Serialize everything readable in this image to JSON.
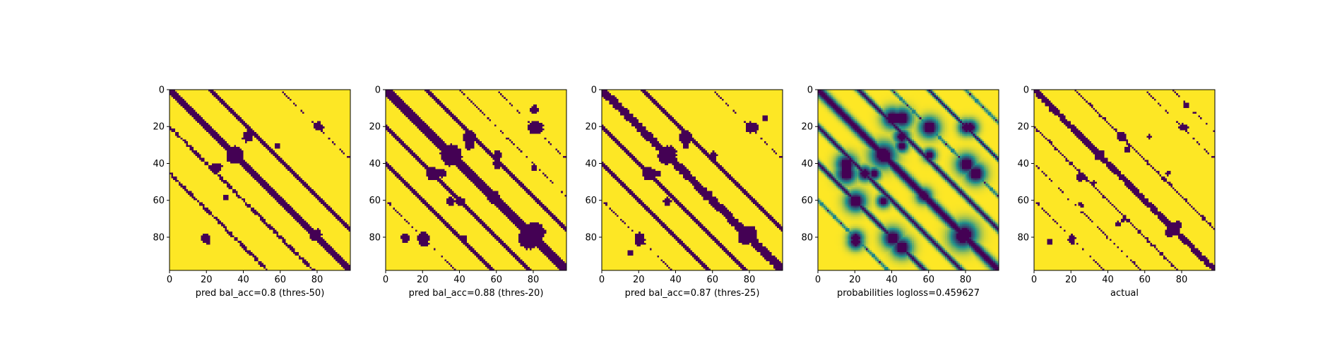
{
  "colors": {
    "low": "#440154",
    "mid": "#21918c",
    "high": "#fde725",
    "frame": "#000000"
  },
  "chart_data": [
    {
      "type": "heatmap",
      "kind": "binary",
      "xlabel": "pred bal_acc=0.8 (thres-50)",
      "xticks": [
        0,
        20,
        40,
        60,
        80
      ],
      "yticks": [
        0,
        20,
        40,
        60,
        80
      ],
      "xlim": [
        0,
        98
      ],
      "ylim": [
        98,
        0
      ],
      "main_diagonal_width": 2.2,
      "spots": [
        [
          35,
          35,
          4
        ],
        [
          42,
          25,
          2.5
        ],
        [
          78,
          79,
          2.5
        ],
        [
          19,
          80,
          2
        ],
        [
          30,
          58,
          1.5
        ],
        [
          82,
          20,
          1.2
        ]
      ],
      "side_bands": [
        [
          20,
          4
        ],
        [
          -22,
          5
        ],
        [
          -60,
          2
        ],
        [
          45,
          -4
        ]
      ]
    },
    {
      "type": "heatmap",
      "kind": "binary",
      "xlabel": "pred bal_acc=0.88 (thres-20)",
      "xticks": [
        0,
        20,
        40,
        60,
        80
      ],
      "yticks": [
        0,
        20,
        40,
        60,
        80
      ],
      "xlim": [
        0,
        98
      ],
      "ylim": [
        98,
        0
      ],
      "main_diagonal_width": 2.8,
      "spots": [
        [
          35,
          35,
          5
        ],
        [
          45,
          25,
          3
        ],
        [
          80,
          77,
          5
        ],
        [
          58,
          58,
          3
        ],
        [
          20,
          80,
          3
        ],
        [
          82,
          20,
          2.5
        ],
        [
          10,
          80,
          2
        ],
        [
          35,
          60,
          2
        ],
        [
          30,
          45,
          2
        ],
        [
          60,
          40,
          2
        ],
        [
          85,
          85,
          2
        ],
        [
          42,
          80,
          1.5
        ]
      ],
      "side_bands": [
        [
          20,
          6
        ],
        [
          -22,
          6
        ],
        [
          40,
          -6
        ],
        [
          -60,
          3
        ],
        [
          -40,
          2
        ],
        [
          60,
          2
        ]
      ]
    },
    {
      "type": "heatmap",
      "kind": "binary",
      "xlabel": "pred bal_acc=0.87 (thres-25)",
      "xticks": [
        0,
        20,
        40,
        60,
        80
      ],
      "yticks": [
        0,
        20,
        40,
        60,
        80
      ],
      "xlim": [
        0,
        98
      ],
      "ylim": [
        98,
        0
      ],
      "main_diagonal_width": 2.6,
      "spots": [
        [
          35,
          35,
          4.5
        ],
        [
          45,
          25,
          3
        ],
        [
          79,
          78,
          4
        ],
        [
          57,
          57,
          2.5
        ],
        [
          20,
          80,
          2.5
        ],
        [
          82,
          20,
          2
        ],
        [
          35,
          60,
          1.8
        ],
        [
          30,
          45,
          1.5
        ],
        [
          88,
          15,
          1.5
        ]
      ],
      "side_bands": [
        [
          20,
          5
        ],
        [
          -22,
          5
        ],
        [
          40,
          -5
        ],
        [
          -60,
          2.5
        ],
        [
          60,
          2
        ]
      ]
    },
    {
      "type": "heatmap",
      "kind": "probability",
      "xlabel": "probabilities logloss=0.459627",
      "xticks": [
        0,
        20,
        40,
        60,
        80
      ],
      "yticks": [
        0,
        20,
        40,
        60,
        80
      ],
      "xlim": [
        0,
        98
      ],
      "ylim": [
        98,
        0
      ],
      "main_diagonal_width": 2.6,
      "spots": [
        [
          35,
          35,
          5
        ],
        [
          45,
          25,
          3
        ],
        [
          79,
          78,
          5
        ],
        [
          57,
          57,
          3
        ],
        [
          20,
          80,
          3
        ],
        [
          82,
          20,
          3
        ],
        [
          40,
          15,
          4
        ],
        [
          60,
          20,
          4
        ],
        [
          15,
          45,
          4
        ],
        [
          20,
          60,
          4
        ],
        [
          80,
          40,
          4
        ],
        [
          45,
          85,
          4
        ],
        [
          35,
          60,
          2.5
        ],
        [
          30,
          45,
          2.5
        ]
      ],
      "side_bands": [
        [
          20,
          6
        ],
        [
          -22,
          6
        ],
        [
          40,
          -6
        ],
        [
          -60,
          4
        ],
        [
          -40,
          3
        ],
        [
          60,
          3
        ],
        [
          -80,
          3
        ]
      ]
    },
    {
      "type": "heatmap",
      "kind": "binary",
      "xlabel": "actual",
      "xticks": [
        0,
        20,
        40,
        60,
        80
      ],
      "yticks": [
        0,
        20,
        40,
        60,
        80
      ],
      "xlim": [
        0,
        98
      ],
      "ylim": [
        98,
        0
      ],
      "main_diagonal_width": 1.8,
      "spots": [
        [
          10,
          10,
          2
        ],
        [
          35,
          35,
          2.5
        ],
        [
          47,
          25,
          2
        ],
        [
          73,
          77,
          2
        ],
        [
          20,
          80,
          1.8
        ],
        [
          8,
          82,
          1.5
        ],
        [
          82,
          20,
          1.2
        ],
        [
          72,
          45,
          1.2
        ],
        [
          48,
          70,
          1.2
        ],
        [
          32,
          50,
          1.2
        ],
        [
          62,
          25,
          1.2
        ]
      ],
      "side_bands": [
        [
          20,
          3.5
        ],
        [
          -22,
          3.5
        ],
        [
          40,
          -3
        ],
        [
          -60,
          2
        ],
        [
          60,
          1.5
        ],
        [
          -75,
          1.5
        ]
      ]
    }
  ]
}
